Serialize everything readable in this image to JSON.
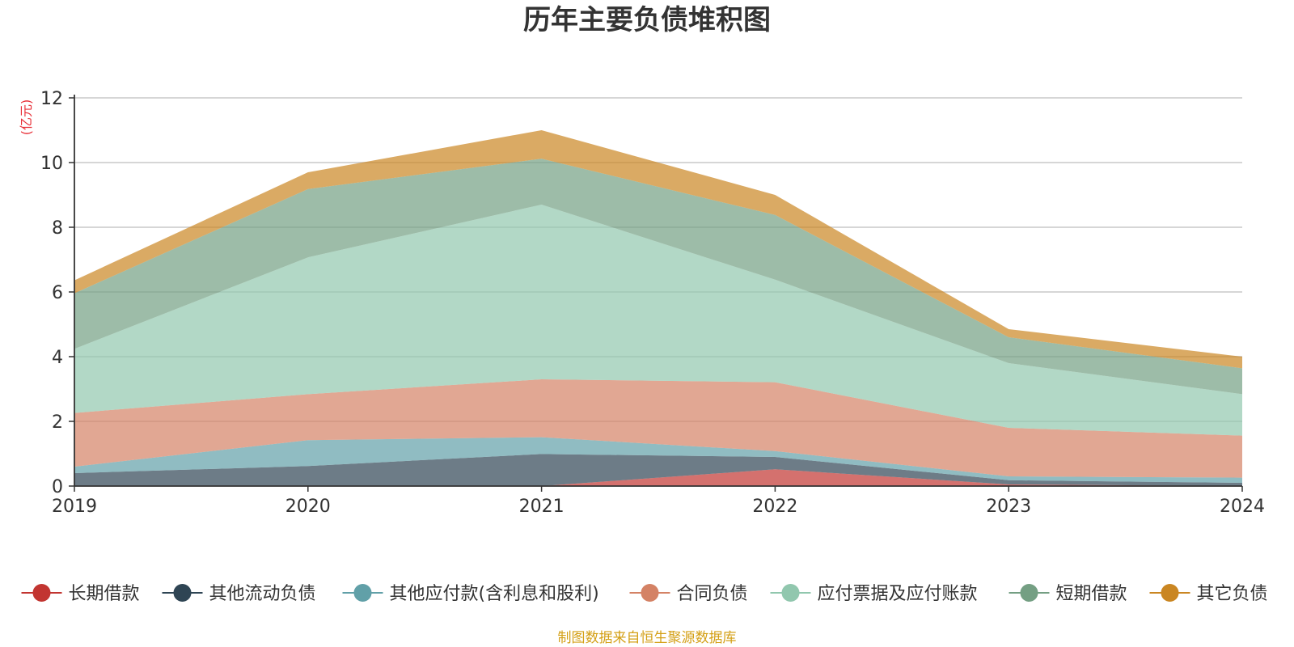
{
  "chart_data": {
    "type": "area",
    "stacked": true,
    "title": "历年主要负债堆积图",
    "unit_label": "(亿元)",
    "unit_color": "#e8333b",
    "categories": [
      "2019",
      "2020",
      "2021",
      "2022",
      "2023",
      "2024"
    ],
    "ylim": [
      0,
      12
    ],
    "yticks": [
      "0",
      "2",
      "4",
      "6",
      "8",
      "10",
      "12"
    ],
    "grid": true,
    "legend_position": "bottom",
    "series": [
      {
        "name": "长期借款",
        "color": "#c23531",
        "values": [
          0,
          0,
          0,
          0.52,
          0.05,
          0.0
        ]
      },
      {
        "name": "其他流动负债",
        "color": "#2f4554",
        "values": [
          0.4,
          0.62,
          0.99,
          0.38,
          0.13,
          0.1
        ]
      },
      {
        "name": "其他应付款(含利息和股利)",
        "color": "#61a0a8",
        "values": [
          0.2,
          0.8,
          0.52,
          0.18,
          0.12,
          0.16
        ]
      },
      {
        "name": "合同负债",
        "color": "#d48265",
        "values": [
          1.66,
          1.42,
          1.79,
          2.13,
          1.5,
          1.3
        ]
      },
      {
        "name": "应付票据及应付账款",
        "color": "#91c7ae",
        "values": [
          1.98,
          4.23,
          5.4,
          3.17,
          2.0,
          1.28
        ]
      },
      {
        "name": "短期借款",
        "color": "#749f83",
        "values": [
          1.72,
          2.11,
          1.42,
          2.0,
          0.8,
          0.8
        ]
      },
      {
        "name": "其它负债",
        "color": "#ca8622",
        "values": [
          0.4,
          0.52,
          0.88,
          0.62,
          0.25,
          0.36
        ]
      }
    ]
  },
  "footer": {
    "source": "制图数据来自恒生聚源数据库",
    "source_color": "#d4a017"
  }
}
